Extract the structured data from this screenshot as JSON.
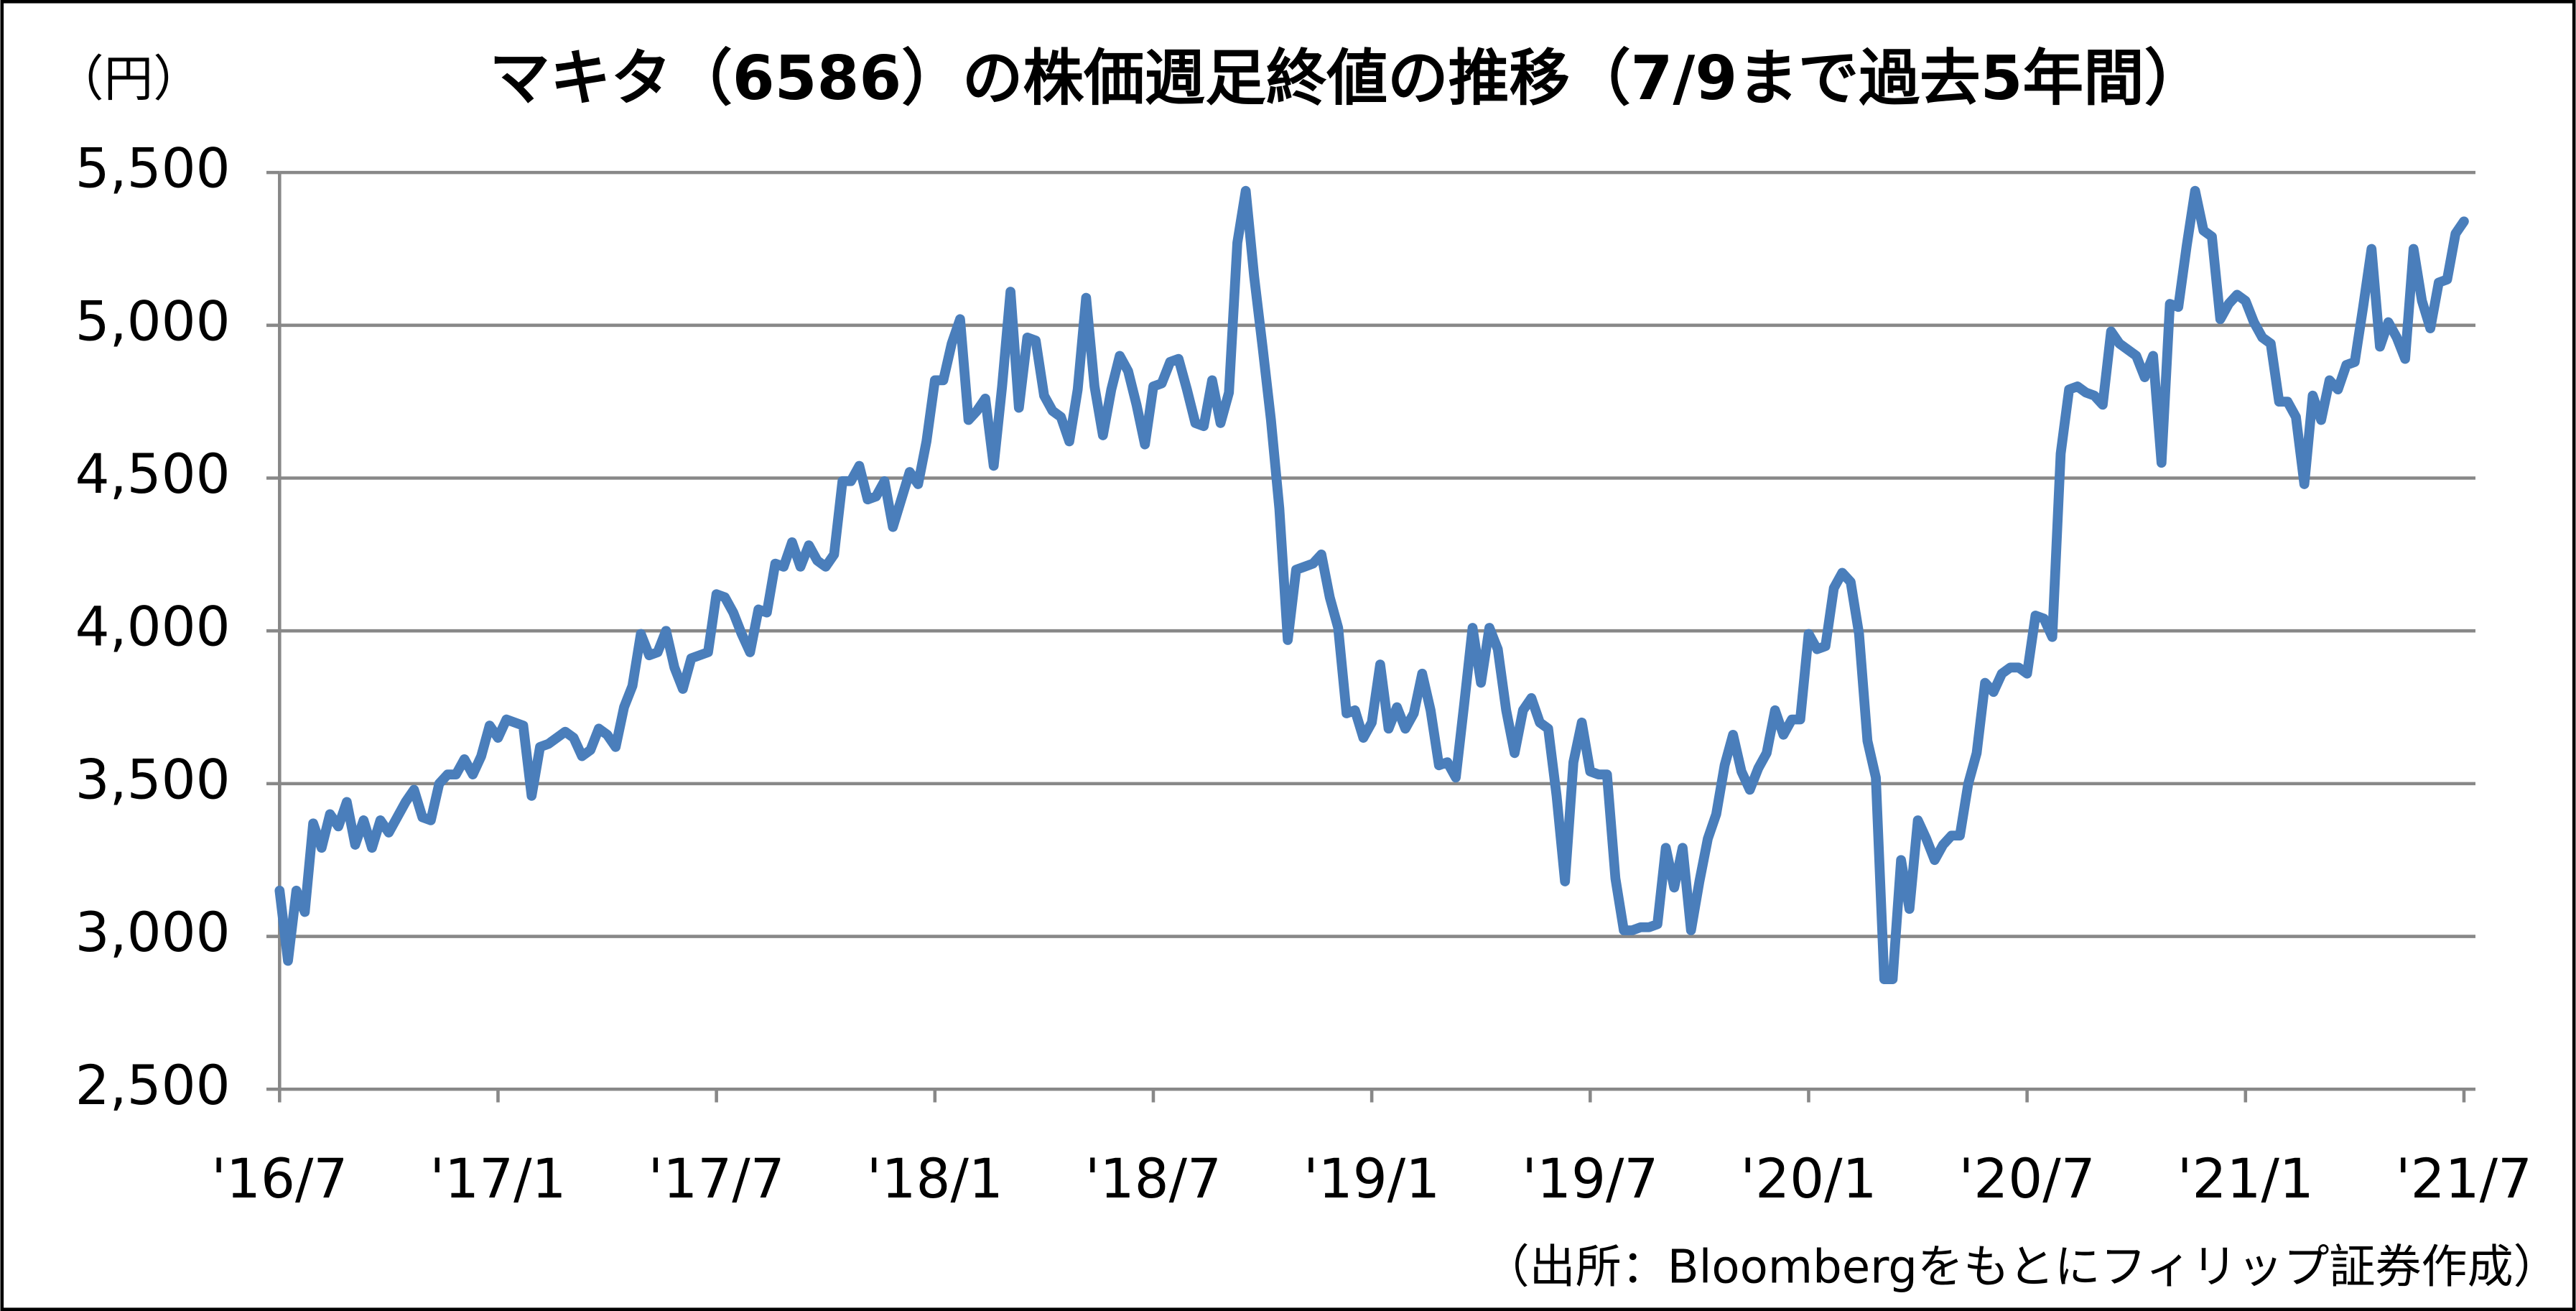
{
  "chart_data": {
    "type": "line",
    "title": "マキタ（6586）の株価週足終値の推移（7/9まで過去5年間）",
    "y_label": "（円）",
    "source": "（出所：Bloombergをもとにフィリップ証券作成）",
    "color": "#4a7ebb",
    "grid": true,
    "ylim": [
      2500,
      5500
    ],
    "yticks": [
      {
        "value": 2500,
        "label": "2,500"
      },
      {
        "value": 3000,
        "label": "3,000"
      },
      {
        "value": 3500,
        "label": "3,500"
      },
      {
        "value": 4000,
        "label": "4,000"
      },
      {
        "value": 4500,
        "label": "4,500"
      },
      {
        "value": 5000,
        "label": "5,000"
      },
      {
        "value": 5500,
        "label": "5,500"
      }
    ],
    "categories": [
      "'16/7",
      null,
      null,
      null,
      null,
      null,
      null,
      null,
      null,
      null,
      null,
      null,
      null,
      null,
      null,
      null,
      null,
      null,
      null,
      null,
      null,
      null,
      null,
      null,
      null,
      null,
      "'17/1",
      null,
      null,
      null,
      null,
      null,
      null,
      null,
      null,
      null,
      null,
      null,
      null,
      null,
      null,
      null,
      null,
      null,
      null,
      null,
      null,
      null,
      null,
      null,
      null,
      null,
      "'17/7",
      null,
      null,
      null,
      null,
      null,
      null,
      null,
      null,
      null,
      null,
      null,
      null,
      null,
      null,
      null,
      null,
      null,
      null,
      null,
      null,
      null,
      null,
      null,
      null,
      null,
      "'18/1",
      null,
      null,
      null,
      null,
      null,
      null,
      null,
      null,
      null,
      null,
      null,
      null,
      null,
      null,
      null,
      null,
      null,
      null,
      null,
      null,
      null,
      null,
      null,
      null,
      null,
      "'18/7",
      null,
      null,
      null,
      null,
      null,
      null,
      null,
      null,
      null,
      null,
      null,
      null,
      null,
      null,
      null,
      null,
      null,
      null,
      null,
      null,
      null,
      null,
      null,
      null,
      null,
      "'19/1",
      null,
      null,
      null,
      null,
      null,
      null,
      null,
      null,
      null,
      null,
      null,
      null,
      null,
      null,
      null,
      null,
      null,
      null,
      null,
      null,
      null,
      null,
      null,
      null,
      null,
      "'19/7",
      null,
      null,
      null,
      null,
      null,
      null,
      null,
      null,
      null,
      null,
      null,
      null,
      null,
      null,
      null,
      null,
      null,
      null,
      null,
      null,
      null,
      null,
      null,
      null,
      null,
      "'20/1",
      null,
      null,
      null,
      null,
      null,
      null,
      null,
      null,
      null,
      null,
      null,
      null,
      null,
      null,
      null,
      null,
      null,
      null,
      null,
      null,
      null,
      null,
      null,
      null,
      null,
      "'20/7",
      null,
      null,
      null,
      null,
      null,
      null,
      null,
      null,
      null,
      null,
      null,
      null,
      null,
      null,
      null,
      null,
      null,
      null,
      null,
      null,
      null,
      null,
      null,
      null,
      null,
      "'21/1",
      null,
      null,
      null,
      null,
      null,
      null,
      null,
      null,
      null,
      null,
      null,
      null,
      null,
      null,
      null,
      null,
      null,
      null,
      null,
      null,
      null,
      null,
      null,
      null,
      null,
      "'21/7"
    ],
    "values": [
      3150,
      2920,
      3150,
      3080,
      3370,
      3290,
      3400,
      3360,
      3440,
      3300,
      3380,
      3290,
      3380,
      3340,
      3390,
      3440,
      3480,
      3390,
      3380,
      3500,
      3530,
      3530,
      3580,
      3530,
      3590,
      3690,
      3650,
      3710,
      3700,
      3690,
      3460,
      3620,
      3630,
      3650,
      3670,
      3650,
      3590,
      3610,
      3680,
      3660,
      3620,
      3750,
      3820,
      3990,
      3920,
      3930,
      4000,
      3880,
      3810,
      3910,
      3920,
      3930,
      4120,
      4110,
      4060,
      3990,
      3930,
      4070,
      4060,
      4220,
      4210,
      4290,
      4210,
      4280,
      4230,
      4210,
      4250,
      4490,
      4490,
      4540,
      4430,
      4440,
      4490,
      4340,
      4430,
      4520,
      4480,
      4620,
      4820,
      4820,
      4940,
      5020,
      4690,
      4720,
      4760,
      4540,
      4800,
      5110,
      4730,
      4960,
      4950,
      4770,
      4720,
      4700,
      4620,
      4790,
      5090,
      4800,
      4640,
      4790,
      4900,
      4850,
      4740,
      4610,
      4800,
      4810,
      4880,
      4890,
      4790,
      4680,
      4670,
      4820,
      4680,
      4780,
      5270,
      5440,
      5160,
      4930,
      4690,
      4400,
      3970,
      4200,
      4210,
      4220,
      4250,
      4110,
      4010,
      3730,
      3740,
      3650,
      3700,
      3890,
      3680,
      3750,
      3680,
      3730,
      3860,
      3740,
      3560,
      3570,
      3520,
      3760,
      4010,
      3830,
      4010,
      3940,
      3740,
      3600,
      3740,
      3780,
      3700,
      3680,
      3460,
      3180,
      3570,
      3700,
      3540,
      3530,
      3530,
      3190,
      3020,
      3020,
      3030,
      3030,
      3040,
      3290,
      3160,
      3290,
      3020,
      3180,
      3320,
      3400,
      3560,
      3660,
      3540,
      3480,
      3550,
      3600,
      3740,
      3660,
      3710,
      3710,
      3990,
      3940,
      3950,
      4140,
      4190,
      4160,
      3990,
      3640,
      3520,
      2860,
      2860,
      3250,
      3090,
      3380,
      3320,
      3250,
      3300,
      3330,
      3330,
      3500,
      3600,
      3830,
      3800,
      3860,
      3880,
      3880,
      3860,
      4050,
      4040,
      3980,
      4580,
      4790,
      4800,
      4780,
      4770,
      4740,
      4980,
      4940,
      4920,
      4900,
      4830,
      4900,
      4550,
      5070,
      5060,
      5260,
      5440,
      5310,
      5290,
      5020,
      5070,
      5100,
      5080,
      5010,
      4960,
      4940,
      4750,
      4750,
      4700,
      4480,
      4770,
      4690,
      4820,
      4790,
      4870,
      4880,
      5060,
      5250,
      4930,
      5010,
      4960,
      4890,
      5250,
      5080,
      4990,
      5140,
      5150,
      5300,
      5340
    ]
  }
}
